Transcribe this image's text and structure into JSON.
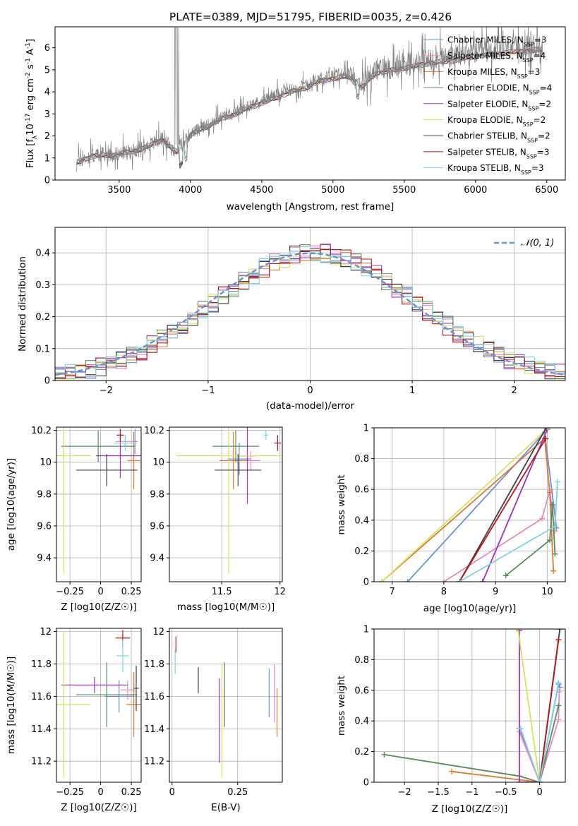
{
  "colors": {
    "Chabrier MILES": "#6f8fd8",
    "Salpeter MILES": "#e889b8",
    "Kroupa MILES": "#dd7a2f",
    "Chabrier ELODIE": "#5b8a5e",
    "Salpeter ELODIE": "#9b32c0",
    "Kroupa ELODIE": "#d7e25b",
    "Chabrier STELIB": "#3f3f3f",
    "Salpeter STELIB": "#b8141c",
    "Kroupa STELIB": "#7fd3dd",
    "gaussian": "#6b91d6",
    "data": "#808080"
  },
  "chart_data": [
    {
      "type": "line",
      "title": "PLATE=0389, MJD=51795, FIBERID=0035, z=0.426",
      "xlabel": "wavelength [Angstrom, rest frame]",
      "ylabel": "Flux [f_λ 10^-17 erg cm^-2 s^-1 A^-1]",
      "xlim": [
        3050,
        6630
      ],
      "ylim": [
        0,
        6.95
      ],
      "xticks": [
        3500,
        4000,
        4500,
        5000,
        5500,
        6000,
        6500
      ],
      "yticks": [
        0,
        1,
        2,
        3,
        4,
        5,
        6
      ],
      "grid": false,
      "legend_position": "top-right",
      "spectrum_x": [
        3200,
        3300,
        3400,
        3500,
        3600,
        3700,
        3800,
        3900,
        4000,
        4100,
        4200,
        4300,
        4400,
        4500,
        4600,
        4700,
        4800,
        4900,
        5000,
        5100,
        5200,
        5300,
        5400,
        5500,
        5600,
        5700,
        5800,
        5900,
        6000,
        6100,
        6200,
        6300,
        6400,
        6460
      ],
      "spectrum_y": [
        0.8,
        1.1,
        1.15,
        1.2,
        1.35,
        1.55,
        1.9,
        1.3,
        2.1,
        2.45,
        2.8,
        3.05,
        3.35,
        3.6,
        3.85,
        4.1,
        4.3,
        4.6,
        4.75,
        4.85,
        4.3,
        5.0,
        5.1,
        5.25,
        5.35,
        5.5,
        5.55,
        5.65,
        5.8,
        5.85,
        5.95,
        6.0,
        6.05,
        6.1
      ],
      "series": [
        {
          "name": "Chabrier MILES, N_SSP=3"
        },
        {
          "name": "Salpeter MILES, N_SSP=4"
        },
        {
          "name": "Kroupa MILES, N_SSP=3"
        },
        {
          "name": "Chabrier ELODIE, N_SSP=4"
        },
        {
          "name": "Salpeter ELODIE, N_SSP=2"
        },
        {
          "name": "Kroupa ELODIE, N_SSP=2"
        },
        {
          "name": "Chabrier STELIB, N_SSP=2"
        },
        {
          "name": "Salpeter STELIB, N_SSP=3"
        },
        {
          "name": "Kroupa STELIB, N_SSP=3"
        }
      ]
    },
    {
      "type": "histogram",
      "xlabel": "(data-model)/error",
      "ylabel": "Normed distribution",
      "xlim": [
        -2.5,
        2.5
      ],
      "ylim": [
        0,
        0.48
      ],
      "xticks": [
        -2,
        -1,
        0,
        1,
        2
      ],
      "yticks": [
        0.0,
        0.1,
        0.2,
        0.3,
        0.4
      ],
      "grid": true,
      "legend_position": "top-right",
      "legend": "N(0,1)",
      "reference_curve": {
        "mean": 0,
        "sigma": 1
      }
    },
    {
      "type": "errorbar",
      "xlabel": "Z [log10(Z/Z☉)]",
      "ylabel": "age [log10(age/yr)]",
      "xlim": [
        -0.36,
        0.33
      ],
      "ylim": [
        9.25,
        10.22
      ],
      "xticks": [
        -0.25,
        0.0,
        0.25
      ],
      "yticks": [
        9.4,
        9.6,
        9.8,
        10.0,
        10.2
      ],
      "grid": true,
      "points": [
        {
          "series": "Chabrier MILES",
          "x": 0.28,
          "y": 10.13,
          "xerr": 0.02,
          "yerr": 0.08
        },
        {
          "series": "Salpeter MILES",
          "x": 0.2,
          "y": 10.13,
          "xerr": 0.08,
          "yerr": 0.04
        },
        {
          "series": "Kroupa MILES",
          "x": 0.27,
          "y": 10.01,
          "xerr": 0.05,
          "yerr": 0.18
        },
        {
          "series": "Chabrier ELODIE",
          "x": -0.02,
          "y": 10.1,
          "xerr": 0.3,
          "yerr": 0.1
        },
        {
          "series": "Salpeter ELODIE",
          "x": 0.16,
          "y": 10.04,
          "xerr": 0.2,
          "yerr": 0.14
        },
        {
          "series": "Kroupa ELODIE",
          "x": -0.3,
          "y": 10.04,
          "xerr": 0.22,
          "yerr": 0.74
        },
        {
          "series": "Chabrier STELIB",
          "x": 0.05,
          "y": 9.95,
          "xerr": 0.25,
          "yerr": 0.1
        },
        {
          "series": "Salpeter STELIB",
          "x": 0.16,
          "y": 10.17,
          "xerr": 0.03,
          "yerr": 0.04
        },
        {
          "series": "Kroupa STELIB",
          "x": 0.2,
          "y": 10.12,
          "xerr": 0.09,
          "yerr": 0.05
        }
      ]
    },
    {
      "type": "errorbar",
      "xlabel": "mass [log10(M/M☉)]",
      "ylabel": "",
      "xlim": [
        11.05,
        12.02
      ],
      "ylim": [
        9.25,
        10.22
      ],
      "xticks": [
        11.5,
        12.0
      ],
      "yticks": [
        9.4,
        9.6,
        9.8,
        10.0,
        10.2
      ],
      "grid": true,
      "points": [
        {
          "series": "Chabrier MILES",
          "x": 11.65,
          "y": 10.02,
          "xerr": 0.1,
          "yerr": 0.1
        },
        {
          "series": "Salpeter MILES",
          "x": 11.75,
          "y": 10.01,
          "xerr": 0.08,
          "yerr": 0.06
        },
        {
          "series": "Kroupa MILES",
          "x": 11.6,
          "y": 10.01,
          "xerr": 0.12,
          "yerr": 0.18
        },
        {
          "series": "Chabrier ELODIE",
          "x": 11.62,
          "y": 10.1,
          "xerr": 0.2,
          "yerr": 0.1
        },
        {
          "series": "Salpeter ELODIE",
          "x": 11.72,
          "y": 10.04,
          "xerr": 0.08,
          "yerr": 0.3
        },
        {
          "series": "Kroupa ELODIE",
          "x": 11.56,
          "y": 10.04,
          "xerr": 0.45,
          "yerr": 0.74
        },
        {
          "series": "Chabrier STELIB",
          "x": 11.64,
          "y": 9.95,
          "xerr": 0.2,
          "yerr": 0.1
        },
        {
          "series": "Salpeter STELIB",
          "x": 11.98,
          "y": 10.12,
          "xerr": 0.03,
          "yerr": 0.05
        },
        {
          "series": "Kroupa STELIB",
          "x": 11.88,
          "y": 10.17,
          "xerr": 0.02,
          "yerr": 0.03
        }
      ]
    },
    {
      "type": "line",
      "xlabel": "age [log10(age/yr)]",
      "ylabel": "mass weight",
      "xlim": [
        6.65,
        10.35
      ],
      "ylim": [
        0,
        1.0
      ],
      "xticks": [
        7,
        8,
        9,
        10
      ],
      "yticks": [
        0.0,
        0.2,
        0.4,
        0.6,
        0.8,
        1.0
      ],
      "grid": true,
      "series": [
        {
          "series": "Chabrier MILES",
          "x": [
            7.3,
            9.95,
            10.18
          ],
          "y": [
            0.0,
            0.97,
            0.35
          ]
        },
        {
          "series": "Salpeter MILES",
          "x": [
            8.0,
            9.9,
            10.05,
            10.15
          ],
          "y": [
            0.0,
            0.41,
            0.59,
            0.33
          ]
        },
        {
          "series": "Kroupa MILES",
          "x": [
            6.8,
            9.95,
            10.05,
            10.12
          ],
          "y": [
            0.0,
            0.93,
            0.58,
            0.07
          ]
        },
        {
          "series": "Chabrier ELODIE",
          "x": [
            9.2,
            10.05,
            10.1,
            10.15
          ],
          "y": [
            0.04,
            0.27,
            0.5,
            0.18
          ]
        },
        {
          "series": "Salpeter ELODIE",
          "x": [
            8.75,
            10.0
          ],
          "y": [
            0.0,
            0.99
          ]
        },
        {
          "series": "Kroupa ELODIE",
          "x": [
            6.8,
            10.02
          ],
          "y": [
            0.0,
            1.0
          ]
        },
        {
          "series": "Chabrier STELIB",
          "x": [
            8.3,
            9.98
          ],
          "y": [
            0.0,
            1.0
          ]
        },
        {
          "series": "Salpeter STELIB",
          "x": [
            8.3,
            9.97
          ],
          "y": [
            0.0,
            0.93
          ]
        },
        {
          "series": "Kroupa STELIB",
          "x": [
            8.3,
            10.15,
            10.2
          ],
          "y": [
            0.0,
            0.36,
            0.65
          ]
        }
      ]
    },
    {
      "type": "errorbar",
      "xlabel": "Z [log10(Z/Z☉)]",
      "ylabel": "mass [log10(M/M☉)]",
      "xlim": [
        -0.36,
        0.33
      ],
      "ylim": [
        11.07,
        12.02
      ],
      "xticks": [
        -0.25,
        0.0,
        0.25
      ],
      "yticks": [
        11.2,
        11.4,
        11.6,
        11.8,
        12.0
      ],
      "grid": true,
      "points": [
        {
          "series": "Chabrier MILES",
          "x": 0.15,
          "y": 11.6,
          "xerr": 0.12,
          "yerr": 0.1
        },
        {
          "series": "Salpeter MILES",
          "x": 0.22,
          "y": 11.64,
          "xerr": 0.06,
          "yerr": 0.06
        },
        {
          "series": "Kroupa MILES",
          "x": 0.27,
          "y": 11.55,
          "xerr": 0.06,
          "yerr": 0.2
        },
        {
          "series": "Chabrier ELODIE",
          "x": 0.05,
          "y": 11.61,
          "xerr": 0.25,
          "yerr": 0.2
        },
        {
          "series": "Salpeter ELODIE",
          "x": -0.05,
          "y": 11.67,
          "xerr": 0.27,
          "yerr": 0.05
        },
        {
          "series": "Kroupa ELODIE",
          "x": -0.3,
          "y": 11.55,
          "xerr": 0.22,
          "yerr": 0.45
        },
        {
          "series": "Chabrier STELIB",
          "x": 0.29,
          "y": 11.65,
          "xerr": 0.02,
          "yerr": 0.14
        },
        {
          "series": "Salpeter STELIB",
          "x": 0.18,
          "y": 11.96,
          "xerr": 0.06,
          "yerr": 0.05
        },
        {
          "series": "Kroupa STELIB",
          "x": 0.18,
          "y": 11.85,
          "xerr": 0.05,
          "yerr": 0.1
        }
      ]
    },
    {
      "type": "errorbar",
      "xlabel": "E(B-V)",
      "ylabel": "",
      "xlim": [
        -0.01,
        0.42
      ],
      "ylim": [
        11.07,
        12.02
      ],
      "xticks": [
        0.0,
        0.25
      ],
      "yticks": [
        11.2,
        11.4,
        11.6,
        11.8,
        12.0
      ],
      "grid": true,
      "points": [
        {
          "series": "Chabrier MILES",
          "x": 0.37,
          "y": 11.62,
          "yerr": 0.15
        },
        {
          "series": "Salpeter MILES",
          "x": 0.39,
          "y": 11.62,
          "yerr": 0.18
        },
        {
          "series": "Kroupa MILES",
          "x": 0.4,
          "y": 11.5,
          "yerr": 0.15
        },
        {
          "series": "Chabrier ELODIE",
          "x": 0.2,
          "y": 11.61,
          "yerr": 0.2
        },
        {
          "series": "Salpeter ELODIE",
          "x": 0.18,
          "y": 11.45,
          "yerr": 0.26
        },
        {
          "series": "Kroupa ELODIE",
          "x": 0.19,
          "y": 11.45,
          "yerr": 0.35
        },
        {
          "series": "Chabrier STELIB",
          "x": 0.1,
          "y": 11.7,
          "yerr": 0.08
        },
        {
          "series": "Salpeter STELIB",
          "x": 0.015,
          "y": 11.92,
          "yerr": 0.05
        },
        {
          "series": "Kroupa STELIB",
          "x": 0.012,
          "y": 11.82,
          "yerr": 0.08
        }
      ]
    },
    {
      "type": "line",
      "xlabel": "Z [log10(Z/Z☉)]",
      "ylabel": "mass weight",
      "xlim": [
        -2.45,
        0.38
      ],
      "ylim": [
        0,
        1.0
      ],
      "xticks": [
        -2.0,
        -1.5,
        -1.0,
        -0.5,
        0.0
      ],
      "yticks": [
        0.0,
        0.2,
        0.4,
        0.6,
        0.8,
        1.0
      ],
      "grid": true,
      "series": [
        {
          "series": "Chabrier MILES",
          "x": [
            -0.3,
            0.0,
            0.28,
            0.3
          ],
          "y": [
            0.35,
            0.0,
            0.64,
            0.62
          ]
        },
        {
          "series": "Salpeter MILES",
          "x": [
            -0.3,
            0.0,
            0.28,
            0.29
          ],
          "y": [
            0.33,
            0.0,
            0.41,
            0.59
          ]
        },
        {
          "series": "Kroupa MILES",
          "x": [
            -1.3,
            0.0,
            0.28
          ],
          "y": [
            0.07,
            0.0,
            0.93
          ]
        },
        {
          "series": "Chabrier ELODIE",
          "x": [
            -2.3,
            -0.3,
            0.0,
            0.28
          ],
          "y": [
            0.18,
            0.04,
            0.0,
            0.5
          ]
        },
        {
          "series": "Salpeter ELODIE",
          "x": [
            -0.3,
            -0.3,
            0.0
          ],
          "y": [
            0.99,
            0.0,
            0.0
          ]
        },
        {
          "series": "Kroupa ELODIE",
          "x": [
            -0.32,
            0.0
          ],
          "y": [
            1.0,
            0.0
          ]
        },
        {
          "series": "Chabrier STELIB",
          "x": [
            0.0,
            0.3
          ],
          "y": [
            0.0,
            1.0
          ]
        },
        {
          "series": "Salpeter STELIB",
          "x": [
            0.0,
            0.28
          ],
          "y": [
            0.0,
            0.93
          ]
        },
        {
          "series": "Kroupa STELIB",
          "x": [
            -0.28,
            0.0,
            0.28
          ],
          "y": [
            0.35,
            0.0,
            0.65
          ]
        }
      ]
    }
  ]
}
